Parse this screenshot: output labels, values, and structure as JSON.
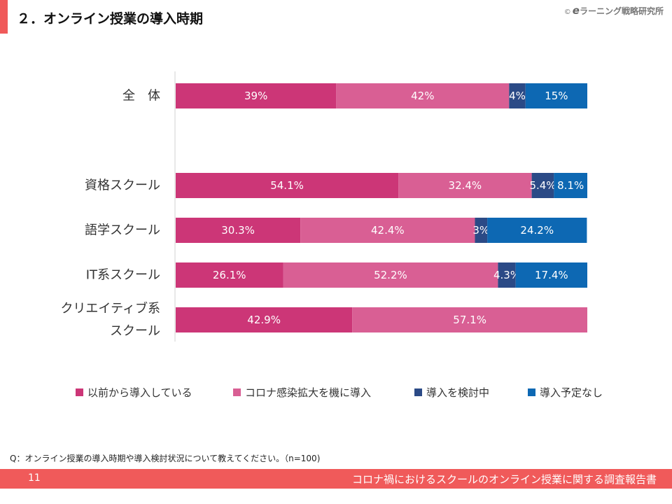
{
  "header": {
    "title": "２．オンライン授業の導入時期",
    "copyright_symbol": "©",
    "copyright_brand_e": "e",
    "copyright_text": "ラーニング戦略研究所"
  },
  "colors": {
    "accent": "#f05a5a",
    "series_1": "#cc3677",
    "series_2": "#d95f94",
    "series_3": "#2b4a86",
    "series_4": "#0d68b3"
  },
  "chart_data": {
    "type": "bar",
    "orientation": "horizontal",
    "stacked": true,
    "percent": true,
    "categories": [
      "全　体",
      "資格スクール",
      "語学スクール",
      "IT系スクール",
      "クリエイティブ系スクール"
    ],
    "category_display_lines": [
      [
        "全　体"
      ],
      [
        "資格スクール"
      ],
      [
        "語学スクール"
      ],
      [
        "IT系スクール"
      ],
      [
        "クリエイティブ系",
        "スクール"
      ]
    ],
    "series": [
      {
        "name": "以前から導入している",
        "values": [
          39,
          54.1,
          30.3,
          26.1,
          42.9
        ],
        "labels": [
          "39%",
          "54.1%",
          "30.3%",
          "26.1%",
          "42.9%"
        ]
      },
      {
        "name": "コロナ感染拡大を機に導入",
        "values": [
          42,
          32.4,
          42.4,
          52.2,
          57.1
        ],
        "labels": [
          "42%",
          "32.4%",
          "42.4%",
          "52.2%",
          "57.1%"
        ]
      },
      {
        "name": "導入を検討中",
        "values": [
          4,
          5.4,
          3,
          4.3,
          0
        ],
        "labels": [
          "4%",
          "5.4%",
          "3%",
          "4.3%",
          ""
        ]
      },
      {
        "name": "導入予定なし",
        "values": [
          15,
          8.1,
          24.2,
          17.4,
          0
        ],
        "labels": [
          "15%",
          "8.1%",
          "24.2%",
          "17.4%",
          ""
        ]
      }
    ],
    "xlim": [
      0,
      100
    ],
    "grid": false,
    "legend_position": "bottom"
  },
  "question": "Q：オンライン授業の導入時期や導入検討状況について教えてください。（n=100)",
  "footer": {
    "page_number": "11",
    "report_title": "コロナ禍におけるスクールのオンライン授業に関する調査報告書"
  }
}
